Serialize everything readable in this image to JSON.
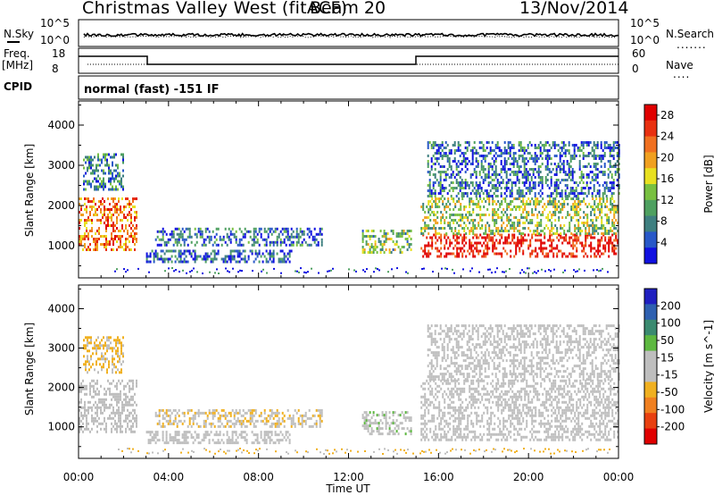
{
  "header": {
    "title": "Christmas Valley West (fitACF)",
    "beam": "Beam 20",
    "date": "13/Nov/2014"
  },
  "aux": {
    "nsky_label": "N.Sky",
    "nsearch_label": "N.Search",
    "freq_label_1": "Freq.",
    "freq_label_2": "[MHz]",
    "nave_label": "Nave",
    "cpid_label": "CPID",
    "cpid_value": "normal (fast) -151 IF",
    "noise_ticks_left": [
      "10^5",
      "10^0"
    ],
    "noise_ticks_right": [
      "10^5",
      "10^0"
    ],
    "freq_ticks": [
      "18",
      "8"
    ],
    "nave_ticks": [
      "60",
      "0"
    ]
  },
  "colors": {
    "power_scale": [
      "#1010e0",
      "#2858c8",
      "#3e7f80",
      "#4ea060",
      "#78c040",
      "#e8e020",
      "#f0a020",
      "#f07020",
      "#e83010",
      "#e00000"
    ],
    "velocity_scale": [
      "#1f1fc0",
      "#2e60b0",
      "#3a8a70",
      "#5db840",
      "#bebebe",
      "#bebebe",
      "#f0b020",
      "#f08020",
      "#e84010",
      "#e00000"
    ]
  },
  "chart_data": [
    {
      "type": "heatmap",
      "title": "Power",
      "xlabel": "Time UT",
      "ylabel": "Slant Range [km]",
      "xticks": [
        "00:00",
        "04:00",
        "08:00",
        "12:00",
        "16:00",
        "20:00",
        "00:00"
      ],
      "yticks": [
        "1000",
        "2000",
        "3000",
        "4000"
      ],
      "xlim": [
        0,
        24
      ],
      "ylim": [
        200,
        4600
      ],
      "colorbar": {
        "label": "Power [dB]",
        "ticks": [
          "4",
          "8",
          "12",
          "16",
          "20",
          "24",
          "28"
        ],
        "range": [
          0,
          30
        ]
      },
      "regions": [
        {
          "t0": 0.0,
          "t1": 2.6,
          "r0": 900,
          "r1": 2200,
          "level": 22
        },
        {
          "t0": 0.2,
          "t1": 2.0,
          "r0": 2400,
          "r1": 3300,
          "level": 8
        },
        {
          "t0": 3.4,
          "t1": 10.8,
          "r0": 1000,
          "r1": 1450,
          "level": 6
        },
        {
          "t0": 3.0,
          "t1": 9.5,
          "r0": 600,
          "r1": 900,
          "level": 5
        },
        {
          "t0": 12.6,
          "t1": 14.8,
          "r0": 800,
          "r1": 1400,
          "level": 12
        },
        {
          "t0": 15.2,
          "t1": 24.0,
          "r0": 700,
          "r1": 1300,
          "level": 28
        },
        {
          "t0": 15.2,
          "t1": 24.0,
          "r0": 1300,
          "r1": 2200,
          "level": 14
        },
        {
          "t0": 15.5,
          "t1": 24.0,
          "r0": 2200,
          "r1": 3600,
          "level": 6
        }
      ]
    },
    {
      "type": "heatmap",
      "title": "Velocity",
      "xlabel": "Time UT",
      "ylabel": "Slant Range [km]",
      "xticks": [
        "00:00",
        "04:00",
        "08:00",
        "12:00",
        "16:00",
        "20:00",
        "00:00"
      ],
      "yticks": [
        "1000",
        "2000",
        "3000",
        "4000"
      ],
      "xlim": [
        0,
        24
      ],
      "ylim": [
        200,
        4600
      ],
      "colorbar": {
        "label": "Velocity [m s^-1]",
        "ticks": [
          "200",
          "100",
          "50",
          "15",
          "-15",
          "-50",
          "-100",
          "-200"
        ],
        "range": [
          -250,
          250
        ]
      },
      "regions": [
        {
          "t0": 0.0,
          "t1": 2.6,
          "r0": 900,
          "r1": 2200,
          "level": 0
        },
        {
          "t0": 0.2,
          "t1": 2.0,
          "r0": 2400,
          "r1": 3300,
          "level": -60
        },
        {
          "t0": 3.4,
          "t1": 10.8,
          "r0": 1000,
          "r1": 1450,
          "level": -40
        },
        {
          "t0": 3.0,
          "t1": 9.5,
          "r0": 600,
          "r1": 900,
          "level": 0
        },
        {
          "t0": 12.6,
          "t1": 14.8,
          "r0": 800,
          "r1": 1400,
          "level": 30
        },
        {
          "t0": 15.2,
          "t1": 24.0,
          "r0": 700,
          "r1": 2200,
          "level": 0
        },
        {
          "t0": 15.5,
          "t1": 24.0,
          "r0": 2200,
          "r1": 3600,
          "level": -20
        }
      ]
    }
  ]
}
